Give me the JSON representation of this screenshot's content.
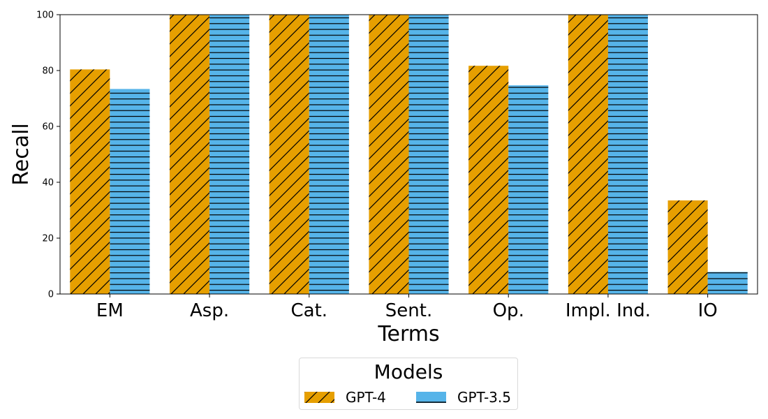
{
  "chart_data": {
    "type": "bar",
    "categories": [
      "EM",
      "Asp.",
      "Cat.",
      "Sent.",
      "Op.",
      "Impl. Ind.",
      "IO"
    ],
    "series": [
      {
        "name": "GPT-4",
        "values": [
          80.4,
          100,
          100,
          100,
          81.7,
          100,
          33.5
        ],
        "color": "#E69F00",
        "hatch": "diagonal"
      },
      {
        "name": "GPT-3.5",
        "values": [
          73.4,
          100,
          100,
          100,
          74.7,
          100,
          7.9
        ],
        "color": "#56B4E9",
        "hatch": "horizontal"
      }
    ],
    "title": "",
    "xlabel": "Terms",
    "ylabel": "Recall",
    "ylim": [
      0,
      100
    ],
    "yticks": [
      "0",
      "20",
      "40",
      "60",
      "80",
      "100"
    ],
    "grid": false,
    "legend": {
      "title": "Models",
      "placement": "bottom-center"
    }
  }
}
